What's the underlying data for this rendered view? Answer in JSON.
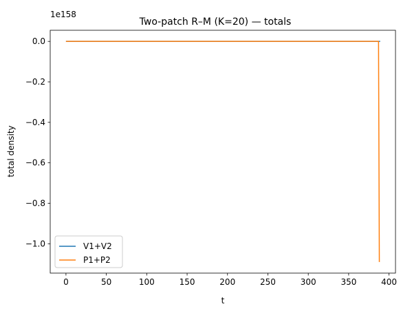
{
  "chart_data": {
    "type": "line",
    "title": "Two-patch R–M (K=20) — totals",
    "xlabel": "t",
    "ylabel": "total density",
    "offset_text": "1e158",
    "y_scale_exponent": 158,
    "xlim": [
      -19.5,
      408
    ],
    "ylim": [
      -1.145,
      0.055
    ],
    "x_ticks": [
      0,
      50,
      100,
      150,
      200,
      250,
      300,
      350,
      400
    ],
    "x_tick_labels": [
      "0",
      "50",
      "100",
      "150",
      "200",
      "250",
      "300",
      "350",
      "400"
    ],
    "y_ticks": [
      0.0,
      -0.2,
      -0.4,
      -0.6,
      -0.8,
      -1.0
    ],
    "y_tick_labels": [
      "0.0",
      "−0.2",
      "−0.4",
      "−0.6",
      "−0.8",
      "−1.0"
    ],
    "legend_position": "lower left",
    "series": [
      {
        "name": "V1+V2",
        "color": "#1f77b4",
        "x": [
          0,
          386,
          387,
          388,
          389
        ],
        "y": [
          0,
          0,
          0,
          0,
          0
        ]
      },
      {
        "name": "P1+P2",
        "color": "#ff7f0e",
        "x": [
          0,
          385,
          386,
          387,
          388
        ],
        "y": [
          0,
          0,
          0,
          0,
          -1.09
        ]
      }
    ]
  }
}
